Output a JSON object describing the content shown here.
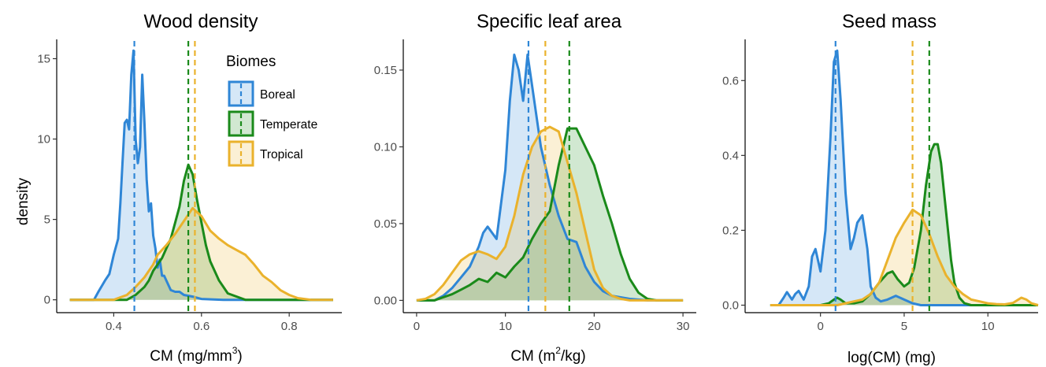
{
  "colors": {
    "Boreal": "#2f86d6",
    "Temperate": "#1a8a1a",
    "Tropical": "#eab22c"
  },
  "ylabel": "density",
  "legend": {
    "title": "Biomes",
    "items": [
      "Boreal",
      "Temperate",
      "Tropical"
    ]
  },
  "chart_data": [
    {
      "type": "area",
      "title": "Wood density",
      "xlabel_main": "CM (mg/mm",
      "xlabel_sup": "3",
      "xlabel_end": ")",
      "xlim": [
        0.27,
        0.92
      ],
      "ylim": [
        -0.8,
        16.2
      ],
      "xticks": [
        0.4,
        0.6,
        0.8
      ],
      "xtick_labels": [
        "0.4",
        "0.6",
        "0.8"
      ],
      "yticks": [
        0,
        5,
        10,
        15
      ],
      "ytick_labels": [
        "0",
        "5",
        "10",
        "15"
      ],
      "means": {
        "Boreal": 0.447,
        "Temperate": 0.57,
        "Tropical": 0.585
      },
      "series": [
        {
          "name": "Boreal",
          "x": [
            0.3,
            0.355,
            0.365,
            0.38,
            0.39,
            0.4,
            0.41,
            0.415,
            0.42,
            0.425,
            0.43,
            0.435,
            0.44,
            0.445,
            0.45,
            0.455,
            0.46,
            0.465,
            0.47,
            0.475,
            0.48,
            0.485,
            0.49,
            0.495,
            0.5,
            0.505,
            0.51,
            0.515,
            0.52,
            0.53,
            0.54,
            0.55,
            0.56,
            0.58,
            0.6,
            0.65,
            0.7,
            0.9
          ],
          "y": [
            0,
            0,
            0.5,
            1.2,
            1.6,
            2.8,
            3.8,
            6,
            8.5,
            11,
            11.2,
            10.6,
            14,
            15.5,
            10,
            8.5,
            9.5,
            14,
            11,
            7.5,
            5.5,
            6,
            4,
            3.2,
            2,
            2.5,
            1.5,
            1.5,
            1.2,
            0.6,
            0.5,
            0.5,
            0.3,
            0.2,
            0.05,
            0,
            0,
            0
          ]
        },
        {
          "name": "Temperate",
          "x": [
            0.3,
            0.43,
            0.45,
            0.47,
            0.48,
            0.49,
            0.5,
            0.51,
            0.52,
            0.53,
            0.54,
            0.55,
            0.56,
            0.57,
            0.58,
            0.59,
            0.6,
            0.61,
            0.62,
            0.64,
            0.66,
            0.7,
            0.9
          ],
          "y": [
            0,
            0,
            0.3,
            0.8,
            1.2,
            1.8,
            2.2,
            2.6,
            3.2,
            3.8,
            4.8,
            5.8,
            7.4,
            8.4,
            7.8,
            6.2,
            4.8,
            3.4,
            2.4,
            1.2,
            0.4,
            0,
            0
          ]
        },
        {
          "name": "Tropical",
          "x": [
            0.3,
            0.4,
            0.43,
            0.45,
            0.47,
            0.49,
            0.5,
            0.52,
            0.54,
            0.56,
            0.58,
            0.6,
            0.62,
            0.64,
            0.66,
            0.68,
            0.7,
            0.72,
            0.74,
            0.76,
            0.78,
            0.8,
            0.82,
            0.85,
            0.9
          ],
          "y": [
            0,
            0,
            0.3,
            0.8,
            1.4,
            2.2,
            2.8,
            3.4,
            4.1,
            4.9,
            5.7,
            5.2,
            4.3,
            3.8,
            3.4,
            3.1,
            2.8,
            2.2,
            1.5,
            1.1,
            0.6,
            0.3,
            0.1,
            0,
            0
          ]
        }
      ]
    },
    {
      "type": "area",
      "title": "Specific leaf area",
      "xlabel_main": "CM (m",
      "xlabel_sup": "2",
      "xlabel_end": "/kg)",
      "xlim": [
        -1.5,
        31.5
      ],
      "ylim": [
        -0.008,
        0.17
      ],
      "xticks": [
        0,
        10,
        20,
        30
      ],
      "xtick_labels": [
        "0",
        "10",
        "20",
        "30"
      ],
      "yticks": [
        0,
        0.05,
        0.1,
        0.15
      ],
      "ytick_labels": [
        "0.00",
        "0.05",
        "0.10",
        "0.15"
      ],
      "means": {
        "Boreal": 12.6,
        "Temperate": 17.2,
        "Tropical": 14.5
      },
      "series": [
        {
          "name": "Boreal",
          "x": [
            0,
            2,
            3,
            4,
            5,
            6,
            7,
            7.5,
            8,
            9,
            10,
            10.5,
            11,
            11.5,
            12,
            12.5,
            13,
            14,
            15,
            16,
            17,
            18,
            19,
            20,
            21,
            22,
            24,
            26,
            30
          ],
          "y": [
            0,
            0,
            0.003,
            0.008,
            0.015,
            0.022,
            0.035,
            0.044,
            0.048,
            0.04,
            0.085,
            0.13,
            0.16,
            0.15,
            0.13,
            0.16,
            0.14,
            0.1,
            0.075,
            0.055,
            0.04,
            0.038,
            0.022,
            0.012,
            0.006,
            0.003,
            0.001,
            0,
            0
          ]
        },
        {
          "name": "Temperate",
          "x": [
            0,
            2,
            3,
            4,
            5,
            6,
            7,
            8,
            9,
            10,
            11,
            12,
            13,
            14,
            15,
            16,
            17,
            18,
            19,
            20,
            21,
            22,
            23,
            24,
            25,
            26,
            27,
            30
          ],
          "y": [
            0,
            0,
            0.002,
            0.004,
            0.007,
            0.01,
            0.014,
            0.012,
            0.018,
            0.015,
            0.022,
            0.028,
            0.04,
            0.05,
            0.058,
            0.088,
            0.112,
            0.112,
            0.1,
            0.088,
            0.068,
            0.05,
            0.03,
            0.014,
            0.005,
            0.001,
            0,
            0
          ]
        },
        {
          "name": "Tropical",
          "x": [
            0,
            1,
            2,
            3,
            4,
            5,
            6,
            7,
            8,
            9,
            10,
            11,
            12,
            13,
            14,
            15,
            16,
            17,
            18,
            19,
            20,
            21,
            22,
            23,
            24,
            26,
            30
          ],
          "y": [
            0,
            0.001,
            0.004,
            0.01,
            0.018,
            0.026,
            0.03,
            0.032,
            0.03,
            0.027,
            0.035,
            0.055,
            0.082,
            0.1,
            0.11,
            0.113,
            0.11,
            0.09,
            0.07,
            0.045,
            0.02,
            0.008,
            0.003,
            0.001,
            0,
            0,
            0
          ]
        }
      ]
    },
    {
      "type": "area",
      "title": "Seed mass",
      "xlabel_main": "log(CM) (mg)",
      "xlabel_sup": "",
      "xlabel_end": "",
      "xlim": [
        -4.5,
        13
      ],
      "ylim": [
        -0.02,
        0.71
      ],
      "xticks": [
        0,
        5,
        10
      ],
      "xtick_labels": [
        "0",
        "5",
        "10"
      ],
      "yticks": [
        0,
        0.2,
        0.4,
        0.6
      ],
      "ytick_labels": [
        "0.0",
        "0.2",
        "0.4",
        "0.6"
      ],
      "means": {
        "Boreal": 0.9,
        "Temperate": 6.5,
        "Tropical": 5.5
      },
      "series": [
        {
          "name": "Boreal",
          "x": [
            -3,
            -2.5,
            -2.2,
            -2,
            -1.7,
            -1.5,
            -1.3,
            -1,
            -0.7,
            -0.5,
            -0.3,
            0,
            0.3,
            0.6,
            0.8,
            1,
            1.2,
            1.5,
            1.8,
            2,
            2.2,
            2.5,
            2.8,
            3,
            3.3,
            3.6,
            4,
            4.5,
            5,
            5.5,
            6,
            7,
            8,
            13
          ],
          "y": [
            0,
            0,
            0.02,
            0.035,
            0.015,
            0.03,
            0.038,
            0.015,
            0.05,
            0.13,
            0.15,
            0.09,
            0.2,
            0.45,
            0.65,
            0.68,
            0.55,
            0.3,
            0.15,
            0.18,
            0.22,
            0.24,
            0.15,
            0.05,
            0.02,
            0.01,
            0.015,
            0.025,
            0.015,
            0.005,
            0,
            0,
            0,
            0
          ]
        },
        {
          "name": "Temperate",
          "x": [
            -3,
            0,
            0.5,
            0.8,
            1,
            1.2,
            1.5,
            2,
            2.5,
            3,
            3.5,
            4,
            4.3,
            4.6,
            5,
            5.3,
            5.6,
            6,
            6.3,
            6.6,
            6.8,
            7,
            7.2,
            7.5,
            7.8,
            8,
            8.3,
            8.6,
            9,
            13
          ],
          "y": [
            0,
            0,
            0.005,
            0.015,
            0.02,
            0.015,
            0.005,
            0.005,
            0.01,
            0.03,
            0.06,
            0.085,
            0.09,
            0.07,
            0.05,
            0.06,
            0.1,
            0.2,
            0.32,
            0.41,
            0.43,
            0.43,
            0.38,
            0.25,
            0.12,
            0.06,
            0.02,
            0.005,
            0,
            0
          ]
        },
        {
          "name": "Tropical",
          "x": [
            -3,
            1,
            1.5,
            2,
            2.5,
            3,
            3.5,
            4,
            4.5,
            5,
            5.5,
            6,
            6.5,
            7,
            7.5,
            8,
            8.5,
            9,
            9.5,
            10,
            10.5,
            11,
            11.5,
            12,
            12.3,
            12.6,
            13
          ],
          "y": [
            0,
            0,
            0.005,
            0.01,
            0.015,
            0.03,
            0.06,
            0.12,
            0.18,
            0.22,
            0.255,
            0.24,
            0.19,
            0.13,
            0.08,
            0.05,
            0.03,
            0.015,
            0.01,
            0.005,
            0.003,
            0.002,
            0.006,
            0.02,
            0.015,
            0.005,
            0
          ]
        }
      ]
    }
  ]
}
